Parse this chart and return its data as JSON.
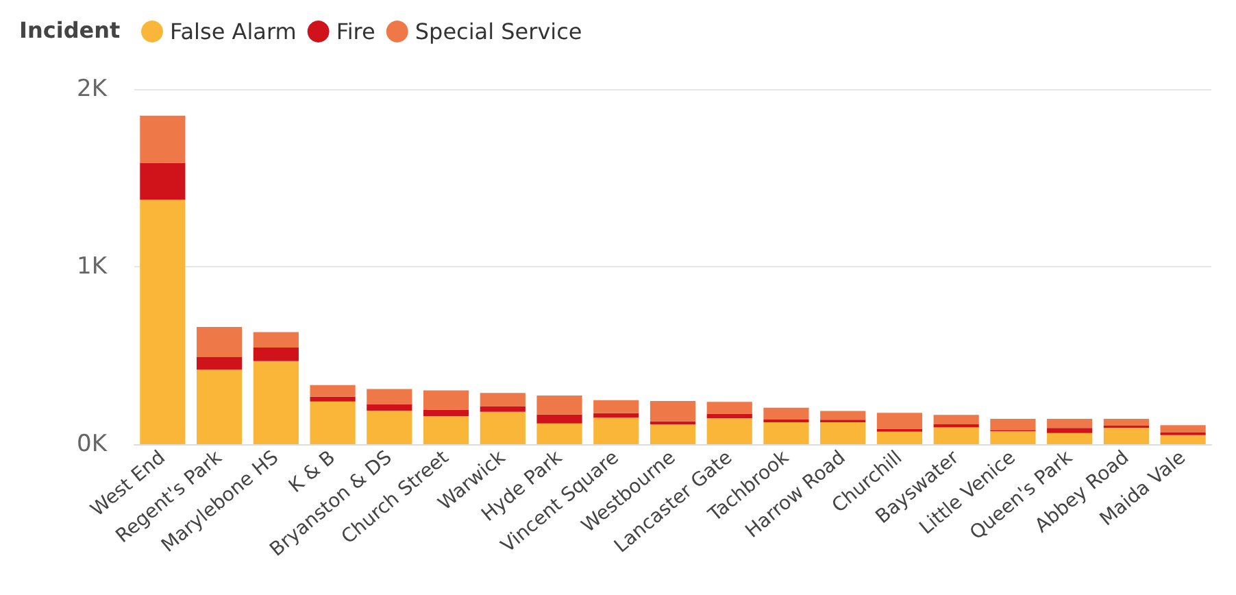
{
  "chart_data": {
    "type": "bar",
    "stacked": true,
    "legend_title": "Incident",
    "legend": "top left",
    "grid": "y",
    "categories": [
      "West End",
      "Regent's Park",
      "Marylebone HS",
      "K & B",
      "Bryanston & DS",
      "Church Street",
      "Warwick",
      "Hyde Park",
      "Vincent Square",
      "Westbourne",
      "Lancaster Gate",
      "Tachbrook",
      "Harrow Road",
      "Churchill",
      "Bayswater",
      "Little Venice",
      "Queen's Park",
      "Abbey Road",
      "Maida Vale"
    ],
    "ylim": [
      0,
      2000
    ],
    "yticks": [
      {
        "value": 0,
        "label": "0K"
      },
      {
        "value": 1000,
        "label": "1K"
      },
      {
        "value": 2000,
        "label": "2K"
      }
    ],
    "series": [
      {
        "name": "False Alarm",
        "color": "#f9b639",
        "values": [
          1376,
          420,
          468,
          240,
          189,
          158,
          182,
          117,
          150,
          112,
          146,
          124,
          124,
          70,
          95,
          73,
          63,
          92,
          51
        ]
      },
      {
        "name": "Fire",
        "color": "#d0121b",
        "values": [
          209,
          70,
          76,
          27,
          37,
          36,
          32,
          50,
          25,
          17,
          26,
          17,
          14,
          17,
          17,
          7,
          29,
          12,
          15
        ]
      },
      {
        "name": "Special Service",
        "color": "#ef7849",
        "values": [
          265,
          170,
          87,
          66,
          85,
          109,
          75,
          107,
          73,
          114,
          66,
          65,
          49,
          90,
          53,
          63,
          51,
          39,
          41
        ]
      }
    ]
  }
}
